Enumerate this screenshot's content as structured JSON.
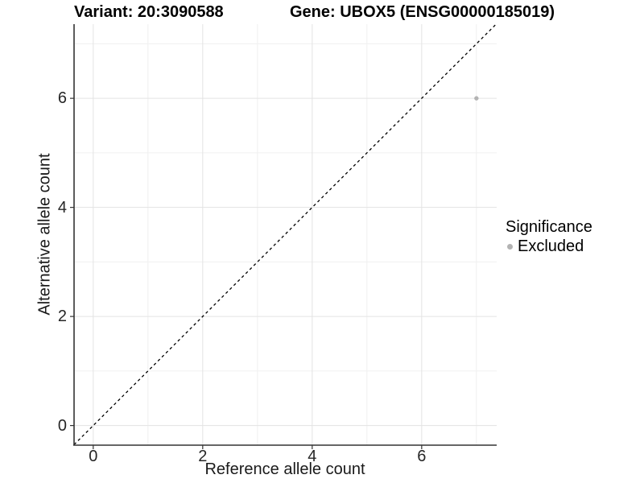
{
  "chart_data": {
    "type": "scatter",
    "title_left": "Variant: 20:3090588",
    "title_right": "Gene: UBOX5 (ENSG00000185019)",
    "xlabel": "Reference allele count",
    "ylabel": "Alternative allele count",
    "xlim": [
      -0.35,
      7.37
    ],
    "ylim": [
      -0.36,
      7.36
    ],
    "x_ticks": [
      0,
      2,
      4,
      6
    ],
    "y_ticks": [
      0,
      2,
      4,
      6
    ],
    "x_minor_ticks": [
      1,
      3,
      5,
      7
    ],
    "y_minor_ticks": [
      1,
      3,
      5,
      7
    ],
    "grid": true,
    "reference_line": {
      "type": "identity",
      "style": "dashed",
      "color": "#000000"
    },
    "series": [
      {
        "name": "Excluded",
        "color": "#b3b3b3",
        "points": [
          {
            "x": 7,
            "y": 6
          }
        ]
      }
    ],
    "legend": {
      "position": "right",
      "title": "Significance",
      "entries": [
        {
          "label": "Excluded",
          "color": "#b3b3b3"
        }
      ]
    },
    "colors": {
      "axis_line": "#333333",
      "tick_mark": "#333333",
      "grid_major": "#e3e3e3",
      "grid_minor": "#f0f0f0",
      "panel_background": "#ffffff"
    }
  }
}
